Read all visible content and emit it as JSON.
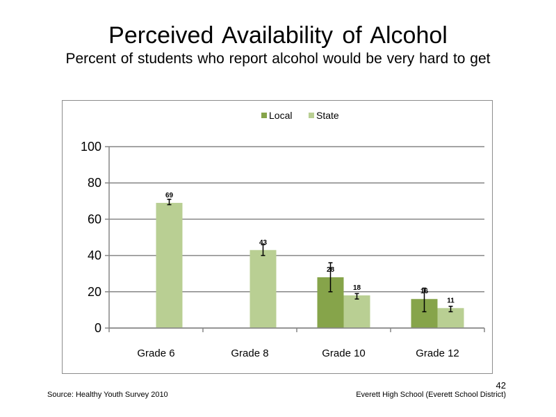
{
  "slide": {
    "title": "Perceived  Availability  of Alcohol",
    "subtitle": "Percent of students  who report alcohol would be very hard to get",
    "source": "Source: Healthy Youth Survey 2010",
    "school": "Everett High School (Everett School District)",
    "page_number": "42"
  },
  "chart_data": {
    "type": "bar",
    "categories": [
      "Grade 6",
      "Grade 8",
      "Grade 10",
      "Grade 12"
    ],
    "series": [
      {
        "name": "Local",
        "color": "#86a44a",
        "values": [
          null,
          null,
          28,
          16
        ],
        "labels": [
          "",
          "",
          "28",
          "16"
        ],
        "error": [
          null,
          null,
          [
            20,
            36
          ],
          [
            9,
            22
          ]
        ]
      },
      {
        "name": "State",
        "color": "#b9cf93",
        "values": [
          69,
          43,
          18,
          11
        ],
        "labels": [
          "69",
          "43",
          "18",
          "11"
        ],
        "error": [
          [
            68,
            71
          ],
          [
            40,
            46
          ],
          [
            16,
            19
          ],
          [
            9,
            12
          ]
        ]
      }
    ],
    "ylim": [
      0,
      100
    ],
    "yticks": [
      0,
      20,
      40,
      60,
      80,
      100
    ],
    "grid": true,
    "legend_position": "top-center"
  }
}
